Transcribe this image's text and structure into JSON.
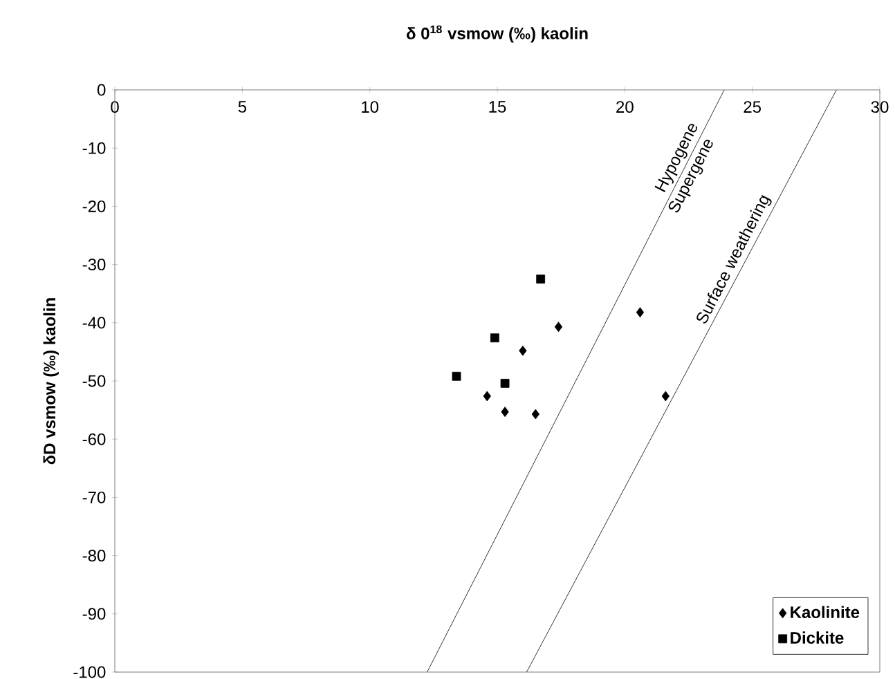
{
  "chart_data": {
    "type": "scatter",
    "xlabel": "δ 0$^{18}$ vsmow (‰) kaolin",
    "ylabel": "δD vsmow (‰) kaolin",
    "xlim": [
      0,
      30
    ],
    "ylim": [
      -100,
      0
    ],
    "xticks": [
      0,
      5,
      10,
      15,
      20,
      25,
      30
    ],
    "yticks": [
      0,
      -10,
      -20,
      -30,
      -40,
      -50,
      -60,
      -70,
      -80,
      -90,
      -100
    ],
    "grid": false,
    "legend": "bottom right",
    "series": [
      {
        "name": "Kaolinite",
        "marker": "diamond",
        "color": "#000000",
        "x": [
          17.4,
          16.0,
          14.6,
          15.3,
          16.5,
          20.6,
          21.6
        ],
        "values": [
          -40.7,
          -44.8,
          -52.6,
          -55.3,
          -55.7,
          -38.2,
          -52.6
        ]
      },
      {
        "name": "Dickite",
        "marker": "square",
        "color": "#000000",
        "x": [
          16.7,
          14.9,
          13.4,
          15.3
        ],
        "values": [
          -32.5,
          -42.6,
          -49.2,
          -50.4
        ]
      },
      {
        "type": "line",
        "marker": "none",
        "line_style": "solid",
        "color": "#000000",
        "x": [
          23.9,
          12.25
        ],
        "values": [
          0,
          -100
        ]
      },
      {
        "type": "line",
        "marker": "none",
        "line_style": "solid",
        "color": "#000000",
        "x": [
          28.3,
          16.15
        ],
        "values": [
          0,
          -100
        ]
      }
    ],
    "annotations": [
      "Hypogene",
      "Supergene",
      "Surface weathering"
    ]
  }
}
